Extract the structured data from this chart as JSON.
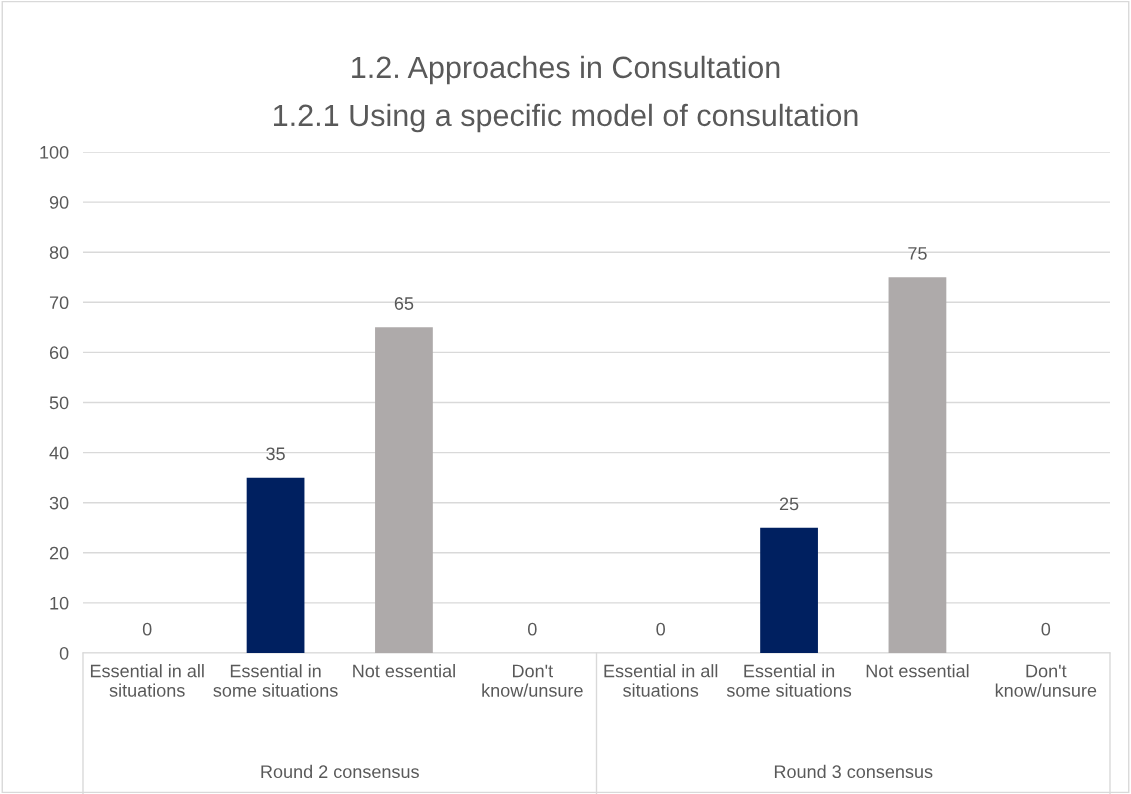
{
  "chart_data": {
    "type": "bar",
    "title": "1.2. Approaches in Consultation",
    "subtitle": "1.2.1 Using a specific model of consultation",
    "categories": [
      "Essential in all situations",
      "Essential in some situations",
      "Not essential",
      "Don't know/unsure",
      "Essential in all situations",
      "Essential in some situations",
      "Not essential",
      "Don't know/unsure"
    ],
    "values": [
      0,
      35,
      65,
      0,
      0,
      25,
      75,
      0
    ],
    "colors": [
      "#002060",
      "#002060",
      "#aeaaaa",
      "#aeaaaa",
      "#002060",
      "#002060",
      "#aeaaaa",
      "#aeaaaa"
    ],
    "annotations": [
      "Round 2 consensus",
      "Round 3 consensus"
    ],
    "ylim": [
      0,
      100
    ],
    "yticks": [
      0,
      10,
      20,
      30,
      40,
      50,
      60,
      70,
      80,
      90,
      100
    ],
    "grid": "y",
    "data_labels": true,
    "legend": false
  }
}
